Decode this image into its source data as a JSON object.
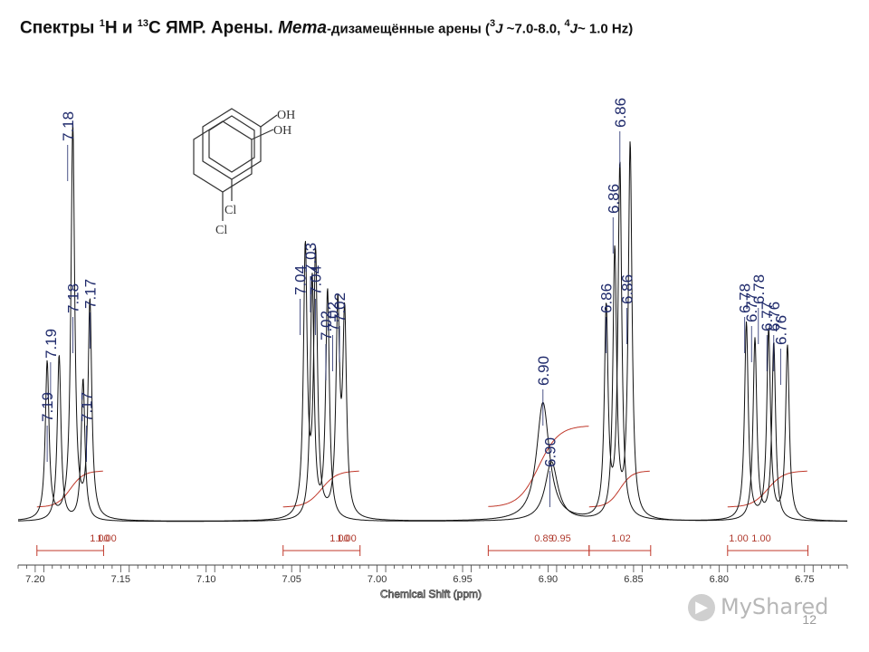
{
  "title": {
    "part1": "Спектры ",
    "sup1": "1",
    "part2": "H и ",
    "sup2": "13",
    "part3": "C ЯМР. Арены. ",
    "italic": "Мета",
    "part4": "-дизамещённые арены (",
    "sup3": "3",
    "j1": "J",
    "part5": " ~7.0-8.0, ",
    "sup4": "4",
    "j2": "J",
    "part6": "~ 1.0 Hz)"
  },
  "structure": {
    "oh_top": "OH",
    "oh_bottom": "OH",
    "cl_top": "Cl",
    "cl_bottom": "Cl"
  },
  "integrals": [
    "1.00",
    "1.00",
    "1.00",
    "1.00",
    "0.89",
    "0.95",
    "1.02",
    "1.00",
    "1.00"
  ],
  "page_number": "12",
  "watermark": "MyShared",
  "chart_data": {
    "type": "line",
    "title": "",
    "xlabel": "Chemical Shift (ppm)",
    "ylabel": "",
    "xlim": [
      7.21,
      6.725
    ],
    "x_axis_reversed": true,
    "xticks": [
      "7.20",
      "7.15",
      "7.10",
      "7.05",
      "7.00",
      "6.95",
      "6.90",
      "6.85",
      "6.80",
      "6.75"
    ],
    "grid": false,
    "series": [
      {
        "peaks": [
          {
            "x": 7.193,
            "height": 0.4
          },
          {
            "x": 7.178,
            "height": 1.0
          },
          {
            "x": 7.168,
            "height": 0.55
          },
          {
            "x": 7.042,
            "height": 0.68
          },
          {
            "x": 7.036,
            "height": 0.66
          },
          {
            "x": 7.023,
            "height": 0.52
          },
          {
            "x": 7.019,
            "height": 0.5
          },
          {
            "x": 6.903,
            "height": 0.3
          },
          {
            "x": 6.866,
            "height": 0.53
          },
          {
            "x": 6.858,
            "height": 0.9
          },
          {
            "x": 6.784,
            "height": 0.5
          },
          {
            "x": 6.771,
            "height": 0.48
          },
          {
            "x": 6.76,
            "height": 0.44
          }
        ]
      },
      {
        "peaks": [
          {
            "x": 7.186,
            "height": 0.42
          },
          {
            "x": 7.172,
            "height": 0.36
          },
          {
            "x": 7.038,
            "height": 0.62
          },
          {
            "x": 7.029,
            "height": 0.58
          },
          {
            "x": 6.898,
            "height": 0.15
          },
          {
            "x": 6.861,
            "height": 0.68
          },
          {
            "x": 6.852,
            "height": 0.95
          },
          {
            "x": 6.779,
            "height": 0.46
          },
          {
            "x": 6.768,
            "height": 0.45
          }
        ]
      }
    ],
    "peak_labels": [
      {
        "x": 7.193,
        "text": "7.19"
      },
      {
        "x": 7.191,
        "text": "7.19"
      },
      {
        "x": 7.181,
        "text": "7.18"
      },
      {
        "x": 7.178,
        "text": "7.18"
      },
      {
        "x": 7.17,
        "text": "7.17"
      },
      {
        "x": 7.168,
        "text": "7.17"
      },
      {
        "x": 7.045,
        "text": "7.04"
      },
      {
        "x": 7.039,
        "text": "7.03"
      },
      {
        "x": 7.036,
        "text": "7.04"
      },
      {
        "x": 7.03,
        "text": "7.02"
      },
      {
        "x": 7.026,
        "text": "7.02"
      },
      {
        "x": 7.022,
        "text": "7.02"
      },
      {
        "x": 6.903,
        "text": "6.90"
      },
      {
        "x": 6.899,
        "text": "6.90"
      },
      {
        "x": 6.866,
        "text": "6.86"
      },
      {
        "x": 6.862,
        "text": "6.86"
      },
      {
        "x": 6.858,
        "text": "6.86"
      },
      {
        "x": 6.854,
        "text": "6.86"
      },
      {
        "x": 6.785,
        "text": "6.78"
      },
      {
        "x": 6.781,
        "text": "6.77"
      },
      {
        "x": 6.777,
        "text": "6.78"
      },
      {
        "x": 6.772,
        "text": "6.77"
      },
      {
        "x": 6.768,
        "text": "6.76"
      },
      {
        "x": 6.764,
        "text": "6.76"
      }
    ],
    "integral_regions": [
      {
        "from": 7.199,
        "to": 7.16,
        "value": "1.00"
      },
      {
        "from": 7.055,
        "to": 7.01,
        "value": "1.00"
      },
      {
        "from": 6.935,
        "to": 6.876,
        "value": "0.89"
      },
      {
        "from": 6.876,
        "to": 6.84,
        "value": "1.02"
      },
      {
        "from": 6.795,
        "to": 6.748,
        "value": "1.00"
      }
    ]
  }
}
